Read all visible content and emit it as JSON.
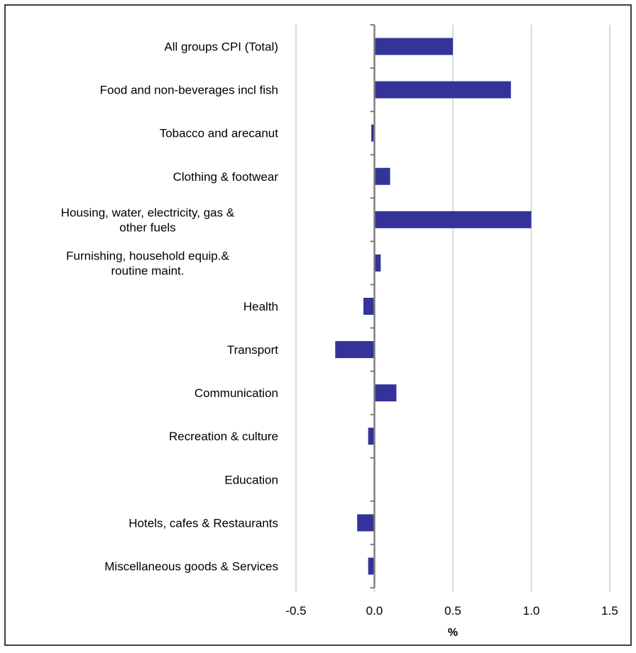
{
  "chart_data": {
    "type": "bar",
    "orientation": "horizontal",
    "title": "",
    "xlabel": "%",
    "ylabel": "",
    "xlim": [
      -0.5,
      1.5
    ],
    "x_ticks": [
      -0.5,
      0.0,
      0.5,
      1.0,
      1.5
    ],
    "x_tick_labels": [
      "-0.5",
      "0.0",
      "0.5",
      "1.0",
      "1.5"
    ],
    "grid": "vertical",
    "legend": "none",
    "bar_color": "#333399",
    "categories": [
      [
        "All groups CPI (Total)"
      ],
      [
        "Food and non-beverages incl fish"
      ],
      [
        "Tobacco and arecanut"
      ],
      [
        "Clothing & footwear"
      ],
      [
        "Housing, water, electricity, gas &",
        "other fuels"
      ],
      [
        "Furnishing, household equip.&",
        "routine maint."
      ],
      [
        "Health"
      ],
      [
        "Transport"
      ],
      [
        "Communication"
      ],
      [
        "Recreation & culture"
      ],
      [
        "Education"
      ],
      [
        "Hotels, cafes & Restaurants"
      ],
      [
        "Miscellaneous goods & Services"
      ]
    ],
    "values": [
      0.5,
      0.87,
      -0.02,
      0.1,
      1.0,
      0.04,
      -0.07,
      -0.25,
      0.14,
      -0.04,
      0.0,
      -0.11,
      -0.04
    ]
  }
}
